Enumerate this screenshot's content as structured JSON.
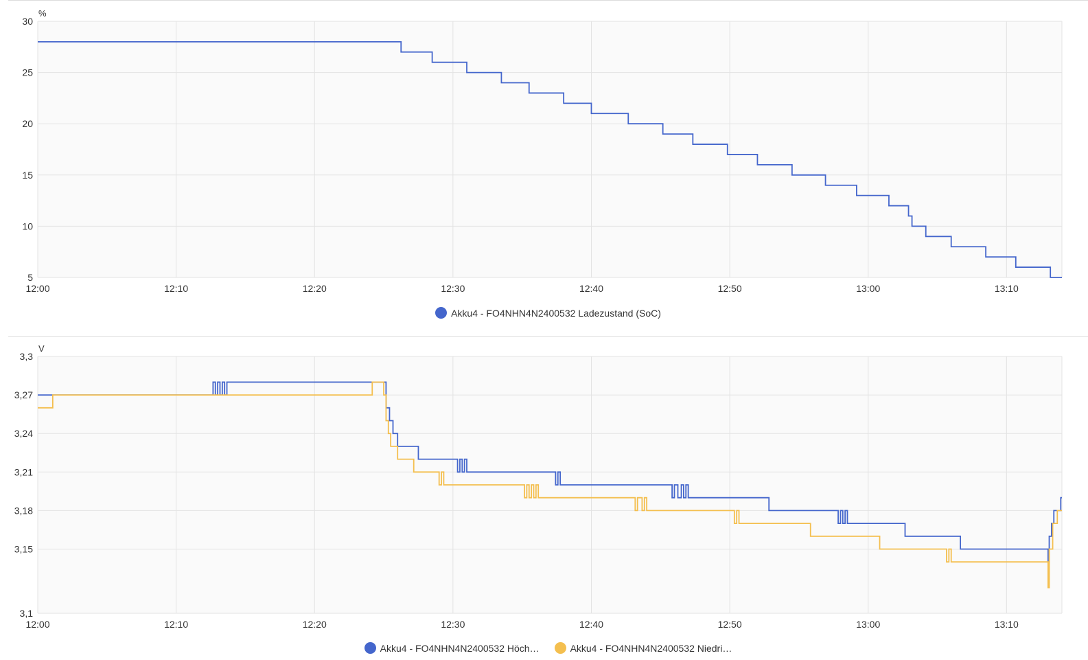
{
  "colors": {
    "blue": "#4466cc",
    "yellow": "#f4bf4f",
    "grid": "#e3e3e3",
    "plot_bg": "#fafafa"
  },
  "chart_data": [
    {
      "id": "soc",
      "type": "line",
      "step": true,
      "ylabel": "%",
      "ylim": [
        5,
        30
      ],
      "yticks": [
        "30",
        "25",
        "20",
        "15",
        "10",
        "5"
      ],
      "xlim": [
        "12:00",
        "13:14"
      ],
      "xticks": [
        "12:00",
        "12:10",
        "12:20",
        "12:30",
        "12:40",
        "12:50",
        "13:00",
        "13:10"
      ],
      "grid": true,
      "legend_position": "bottom-center",
      "series": [
        {
          "name": "Akku4 - FO4NHN4N2400532 Ladezustand (SoC)",
          "color": "#4466cc",
          "points": [
            [
              "12:00:00",
              28
            ],
            [
              "12:26:15",
              27
            ],
            [
              "12:28:30",
              26
            ],
            [
              "12:31:00",
              25
            ],
            [
              "12:33:30",
              24
            ],
            [
              "12:35:30",
              23
            ],
            [
              "12:38:00",
              22
            ],
            [
              "12:40:00",
              21
            ],
            [
              "12:42:40",
              20
            ],
            [
              "12:45:10",
              19
            ],
            [
              "12:47:20",
              18
            ],
            [
              "12:49:50",
              17
            ],
            [
              "12:52:00",
              16
            ],
            [
              "12:54:30",
              15
            ],
            [
              "12:56:55",
              14
            ],
            [
              "12:59:10",
              13
            ],
            [
              "13:01:30",
              12
            ],
            [
              "13:02:55",
              11
            ],
            [
              "13:03:10",
              10
            ],
            [
              "13:04:10",
              9
            ],
            [
              "13:06:00",
              8
            ],
            [
              "13:08:30",
              7
            ],
            [
              "13:10:40",
              6
            ],
            [
              "13:13:10",
              5
            ],
            [
              "13:14:00",
              5
            ]
          ]
        }
      ]
    },
    {
      "id": "volt",
      "type": "line",
      "step": true,
      "ylabel": "V",
      "ylim": [
        3.1,
        3.3
      ],
      "yticks": [
        "3,3",
        "3,27",
        "3,24",
        "3,21",
        "3,18",
        "3,15",
        "3,1"
      ],
      "xlim": [
        "12:00",
        "13:14"
      ],
      "xticks": [
        "12:00",
        "12:10",
        "12:20",
        "12:30",
        "12:40",
        "12:50",
        "13:00",
        "13:10"
      ],
      "grid": true,
      "legend_position": "bottom-center",
      "series": [
        {
          "name": "Akku4 - FO4NHN4N2400532 Höch…",
          "color": "#4466cc",
          "points": [
            [
              "12:00:00",
              3.27
            ],
            [
              "12:12:40",
              3.28
            ],
            [
              "12:12:50",
              3.27
            ],
            [
              "12:13:00",
              3.28
            ],
            [
              "12:13:10",
              3.27
            ],
            [
              "12:13:20",
              3.28
            ],
            [
              "12:13:30",
              3.27
            ],
            [
              "12:13:40",
              3.28
            ],
            [
              "12:25:10",
              3.26
            ],
            [
              "12:25:25",
              3.25
            ],
            [
              "12:25:40",
              3.24
            ],
            [
              "12:26:00",
              3.23
            ],
            [
              "12:27:30",
              3.22
            ],
            [
              "12:30:20",
              3.21
            ],
            [
              "12:30:30",
              3.22
            ],
            [
              "12:30:40",
              3.21
            ],
            [
              "12:30:50",
              3.22
            ],
            [
              "12:31:00",
              3.21
            ],
            [
              "12:37:25",
              3.2
            ],
            [
              "12:37:35",
              3.21
            ],
            [
              "12:37:45",
              3.2
            ],
            [
              "12:45:50",
              3.19
            ],
            [
              "12:46:00",
              3.2
            ],
            [
              "12:46:15",
              3.19
            ],
            [
              "12:46:30",
              3.2
            ],
            [
              "12:46:40",
              3.19
            ],
            [
              "12:46:50",
              3.2
            ],
            [
              "12:47:00",
              3.19
            ],
            [
              "12:52:50",
              3.18
            ],
            [
              "12:57:50",
              3.17
            ],
            [
              "12:58:00",
              3.18
            ],
            [
              "12:58:10",
              3.17
            ],
            [
              "12:58:20",
              3.18
            ],
            [
              "12:58:30",
              3.17
            ],
            [
              "13:02:40",
              3.16
            ],
            [
              "13:06:40",
              3.15
            ],
            [
              "13:13:00",
              3.14
            ],
            [
              "13:13:05",
              3.16
            ],
            [
              "13:13:15",
              3.17
            ],
            [
              "13:13:25",
              3.18
            ],
            [
              "13:13:55",
              3.19
            ],
            [
              "13:14:00",
              3.19
            ]
          ]
        },
        {
          "name": "Akku4 - FO4NHN4N2400532 Niedri…",
          "color": "#f4bf4f",
          "points": [
            [
              "12:00:00",
              3.26
            ],
            [
              "12:01:05",
              3.27
            ],
            [
              "12:24:10",
              3.28
            ],
            [
              "12:25:00",
              3.27
            ],
            [
              "12:25:10",
              3.25
            ],
            [
              "12:25:20",
              3.24
            ],
            [
              "12:25:30",
              3.23
            ],
            [
              "12:26:00",
              3.22
            ],
            [
              "12:27:10",
              3.21
            ],
            [
              "12:29:00",
              3.2
            ],
            [
              "12:29:10",
              3.21
            ],
            [
              "12:29:20",
              3.2
            ],
            [
              "12:35:10",
              3.19
            ],
            [
              "12:35:20",
              3.2
            ],
            [
              "12:35:30",
              3.19
            ],
            [
              "12:35:40",
              3.2
            ],
            [
              "12:35:50",
              3.19
            ],
            [
              "12:36:00",
              3.2
            ],
            [
              "12:36:10",
              3.19
            ],
            [
              "12:43:10",
              3.18
            ],
            [
              "12:43:20",
              3.19
            ],
            [
              "12:43:40",
              3.18
            ],
            [
              "12:43:50",
              3.19
            ],
            [
              "12:44:00",
              3.18
            ],
            [
              "12:50:20",
              3.17
            ],
            [
              "12:50:30",
              3.18
            ],
            [
              "12:50:40",
              3.17
            ],
            [
              "12:55:50",
              3.16
            ],
            [
              "13:00:50",
              3.15
            ],
            [
              "13:05:40",
              3.14
            ],
            [
              "13:05:50",
              3.15
            ],
            [
              "13:06:00",
              3.14
            ],
            [
              "13:13:00",
              3.12
            ],
            [
              "13:13:05",
              3.15
            ],
            [
              "13:13:20",
              3.17
            ],
            [
              "13:13:40",
              3.18
            ],
            [
              "13:14:00",
              3.18
            ]
          ]
        }
      ]
    }
  ]
}
